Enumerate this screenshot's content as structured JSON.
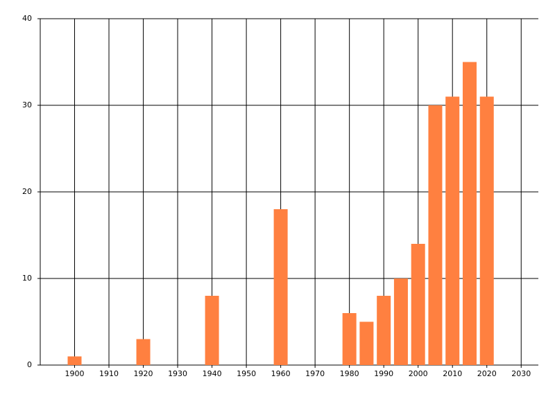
{
  "chart_data": {
    "type": "bar",
    "x": [
      1900,
      1920,
      1940,
      1960,
      1980,
      1985,
      1990,
      1995,
      2000,
      2005,
      2010,
      2015,
      2020
    ],
    "values": [
      1,
      3,
      8,
      18,
      6,
      5,
      8,
      10,
      14,
      30,
      31,
      35,
      31
    ],
    "color": "#ff8040",
    "xlim": [
      1890,
      2035
    ],
    "xticks": [
      1900,
      1910,
      1920,
      1930,
      1940,
      1950,
      1960,
      1970,
      1980,
      1990,
      2000,
      2010,
      2020,
      2030
    ],
    "ylim": [
      0,
      40
    ],
    "yticks": [
      0,
      10,
      20,
      30,
      40
    ],
    "grid": true
  }
}
